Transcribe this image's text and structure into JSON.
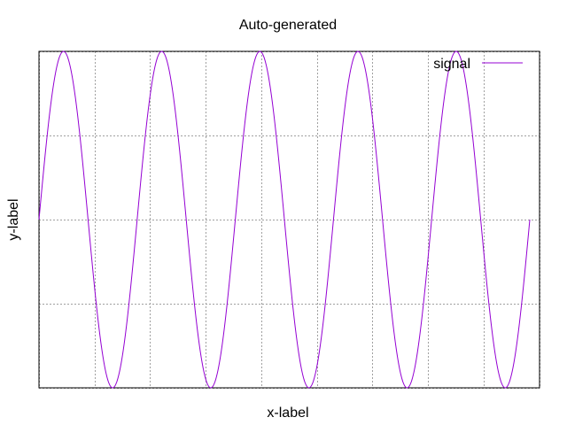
{
  "chart_data": {
    "type": "line",
    "title": "Auto-generated",
    "xlabel": "x-label",
    "ylabel": "y-label",
    "xlim": [
      0,
      1
    ],
    "ylim": [
      -1,
      1
    ],
    "x_grid": [
      0,
      0.111,
      0.222,
      0.333,
      0.444,
      0.555,
      0.666,
      0.777,
      0.888,
      1
    ],
    "y_grid": [
      -1,
      -0.5,
      0,
      0.5,
      1
    ],
    "grid": true,
    "legend_position": "top-right",
    "series": [
      {
        "name": "signal",
        "color": "#9400d3",
        "function": "sin",
        "cycles": 5,
        "amplitude": 1,
        "phase": 0
      }
    ]
  }
}
